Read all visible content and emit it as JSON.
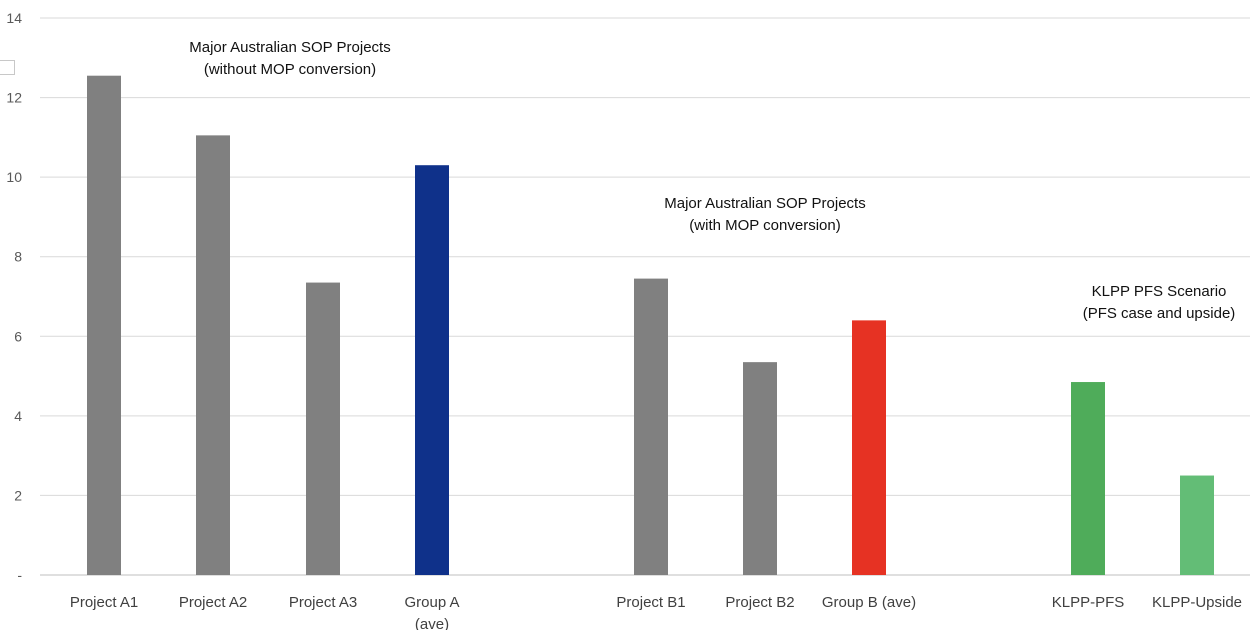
{
  "chart_data": {
    "type": "bar",
    "categories": [
      "Project A1",
      "Project A2",
      "Project A3",
      "Group A (ave)",
      "Project B1",
      "Project B2",
      "Group B (ave)",
      "KLPP-PFS",
      "KLPP-Upside"
    ],
    "category_labels": [
      [
        "Project A1"
      ],
      [
        "Project A2"
      ],
      [
        "Project A3"
      ],
      [
        "Group A",
        "(ave)"
      ],
      [
        "Project B1"
      ],
      [
        "Project B2"
      ],
      [
        "Group B (ave)"
      ],
      [
        "KLPP-PFS"
      ],
      [
        "KLPP-Upside"
      ]
    ],
    "values": [
      12.55,
      11.05,
      7.35,
      10.3,
      7.45,
      5.35,
      6.4,
      4.85,
      2.5
    ],
    "colors": [
      "#808080",
      "#808080",
      "#808080",
      "#0f318a",
      "#808080",
      "#808080",
      "#e63223",
      "#4fac5a",
      "#63bd76"
    ],
    "ylim": [
      0,
      14
    ],
    "yticks": [
      0,
      2,
      4,
      6,
      8,
      10,
      12,
      14
    ],
    "ytick_labels": [
      "-",
      "2",
      "4",
      "6",
      "8",
      "10",
      "12",
      "14"
    ],
    "grid": true,
    "title": "",
    "xlabel": "",
    "ylabel": "",
    "annotations": [
      {
        "group": "A",
        "lines": [
          "Major Australian SOP Projects",
          "(without MOP conversion)"
        ]
      },
      {
        "group": "B",
        "lines": [
          "Major Australian SOP Projects",
          "(with MOP conversion)"
        ]
      },
      {
        "group": "KLPP",
        "lines": [
          "KLPP PFS Scenario",
          "(PFS case and upside)"
        ]
      }
    ]
  }
}
